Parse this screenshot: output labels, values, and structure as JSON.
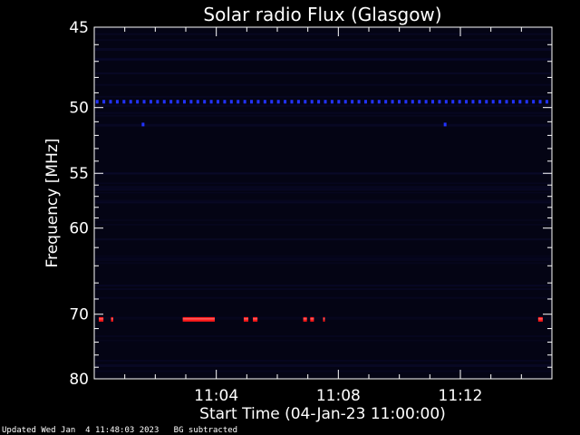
{
  "chart_data": {
    "type": "heatmap",
    "title": "Solar radio Flux (Glasgow)",
    "xlabel": "Start Time (04-Jan-23 11:00:00)",
    "ylabel": "Frequency [MHz]",
    "x_unit": "minutes after 11:00",
    "xlim": [
      0,
      15
    ],
    "y_ticks": [
      45,
      50,
      55,
      60,
      70,
      80
    ],
    "x_ticks": [
      {
        "value": 4,
        "label": "11:04"
      },
      {
        "value": 8,
        "label": "11:08"
      },
      {
        "value": 12,
        "label": "11:12"
      }
    ],
    "colors": {
      "background": "#000000",
      "plot_fill": "#040414",
      "axis": "#ffffff",
      "emission": "#ff1a1a",
      "interference": "#2233ff"
    },
    "features": [
      {
        "kind": "dotted-band",
        "freq_mhz": 49.6,
        "color": "#2233ff",
        "x_start": 0,
        "x_end": 15,
        "step": 0.22
      },
      {
        "kind": "dot",
        "freq_mhz": 51.2,
        "color": "#2233ff",
        "x": 1.6
      },
      {
        "kind": "dot",
        "freq_mhz": 51.2,
        "color": "#2233ff",
        "x": 11.5
      },
      {
        "kind": "segment",
        "freq_mhz": 70.7,
        "color": "#ff1a1a",
        "x_start": 2.9,
        "x_end": 3.95
      },
      {
        "kind": "segment",
        "freq_mhz": 70.7,
        "color": "#ff1a1a",
        "x_start": 0.15,
        "x_end": 0.3
      },
      {
        "kind": "segment",
        "freq_mhz": 70.7,
        "color": "#ff1a1a",
        "x_start": 0.55,
        "x_end": 0.62
      },
      {
        "kind": "segment",
        "freq_mhz": 70.7,
        "color": "#ff1a1a",
        "x_start": 4.9,
        "x_end": 5.05
      },
      {
        "kind": "segment",
        "freq_mhz": 70.7,
        "color": "#ff1a1a",
        "x_start": 5.2,
        "x_end": 5.35
      },
      {
        "kind": "segment",
        "freq_mhz": 70.7,
        "color": "#ff1a1a",
        "x_start": 6.85,
        "x_end": 6.97
      },
      {
        "kind": "segment",
        "freq_mhz": 70.7,
        "color": "#ff1a1a",
        "x_start": 7.08,
        "x_end": 7.2
      },
      {
        "kind": "segment",
        "freq_mhz": 70.7,
        "color": "#ff1a1a",
        "x_start": 7.5,
        "x_end": 7.56
      },
      {
        "kind": "segment",
        "freq_mhz": 70.7,
        "color": "#ff1a1a",
        "x_start": 14.55,
        "x_end": 14.7
      }
    ]
  },
  "footer": {
    "updated": "Updated Wed Jan  4 11:48:03 2023",
    "note": "BG subtracted"
  }
}
